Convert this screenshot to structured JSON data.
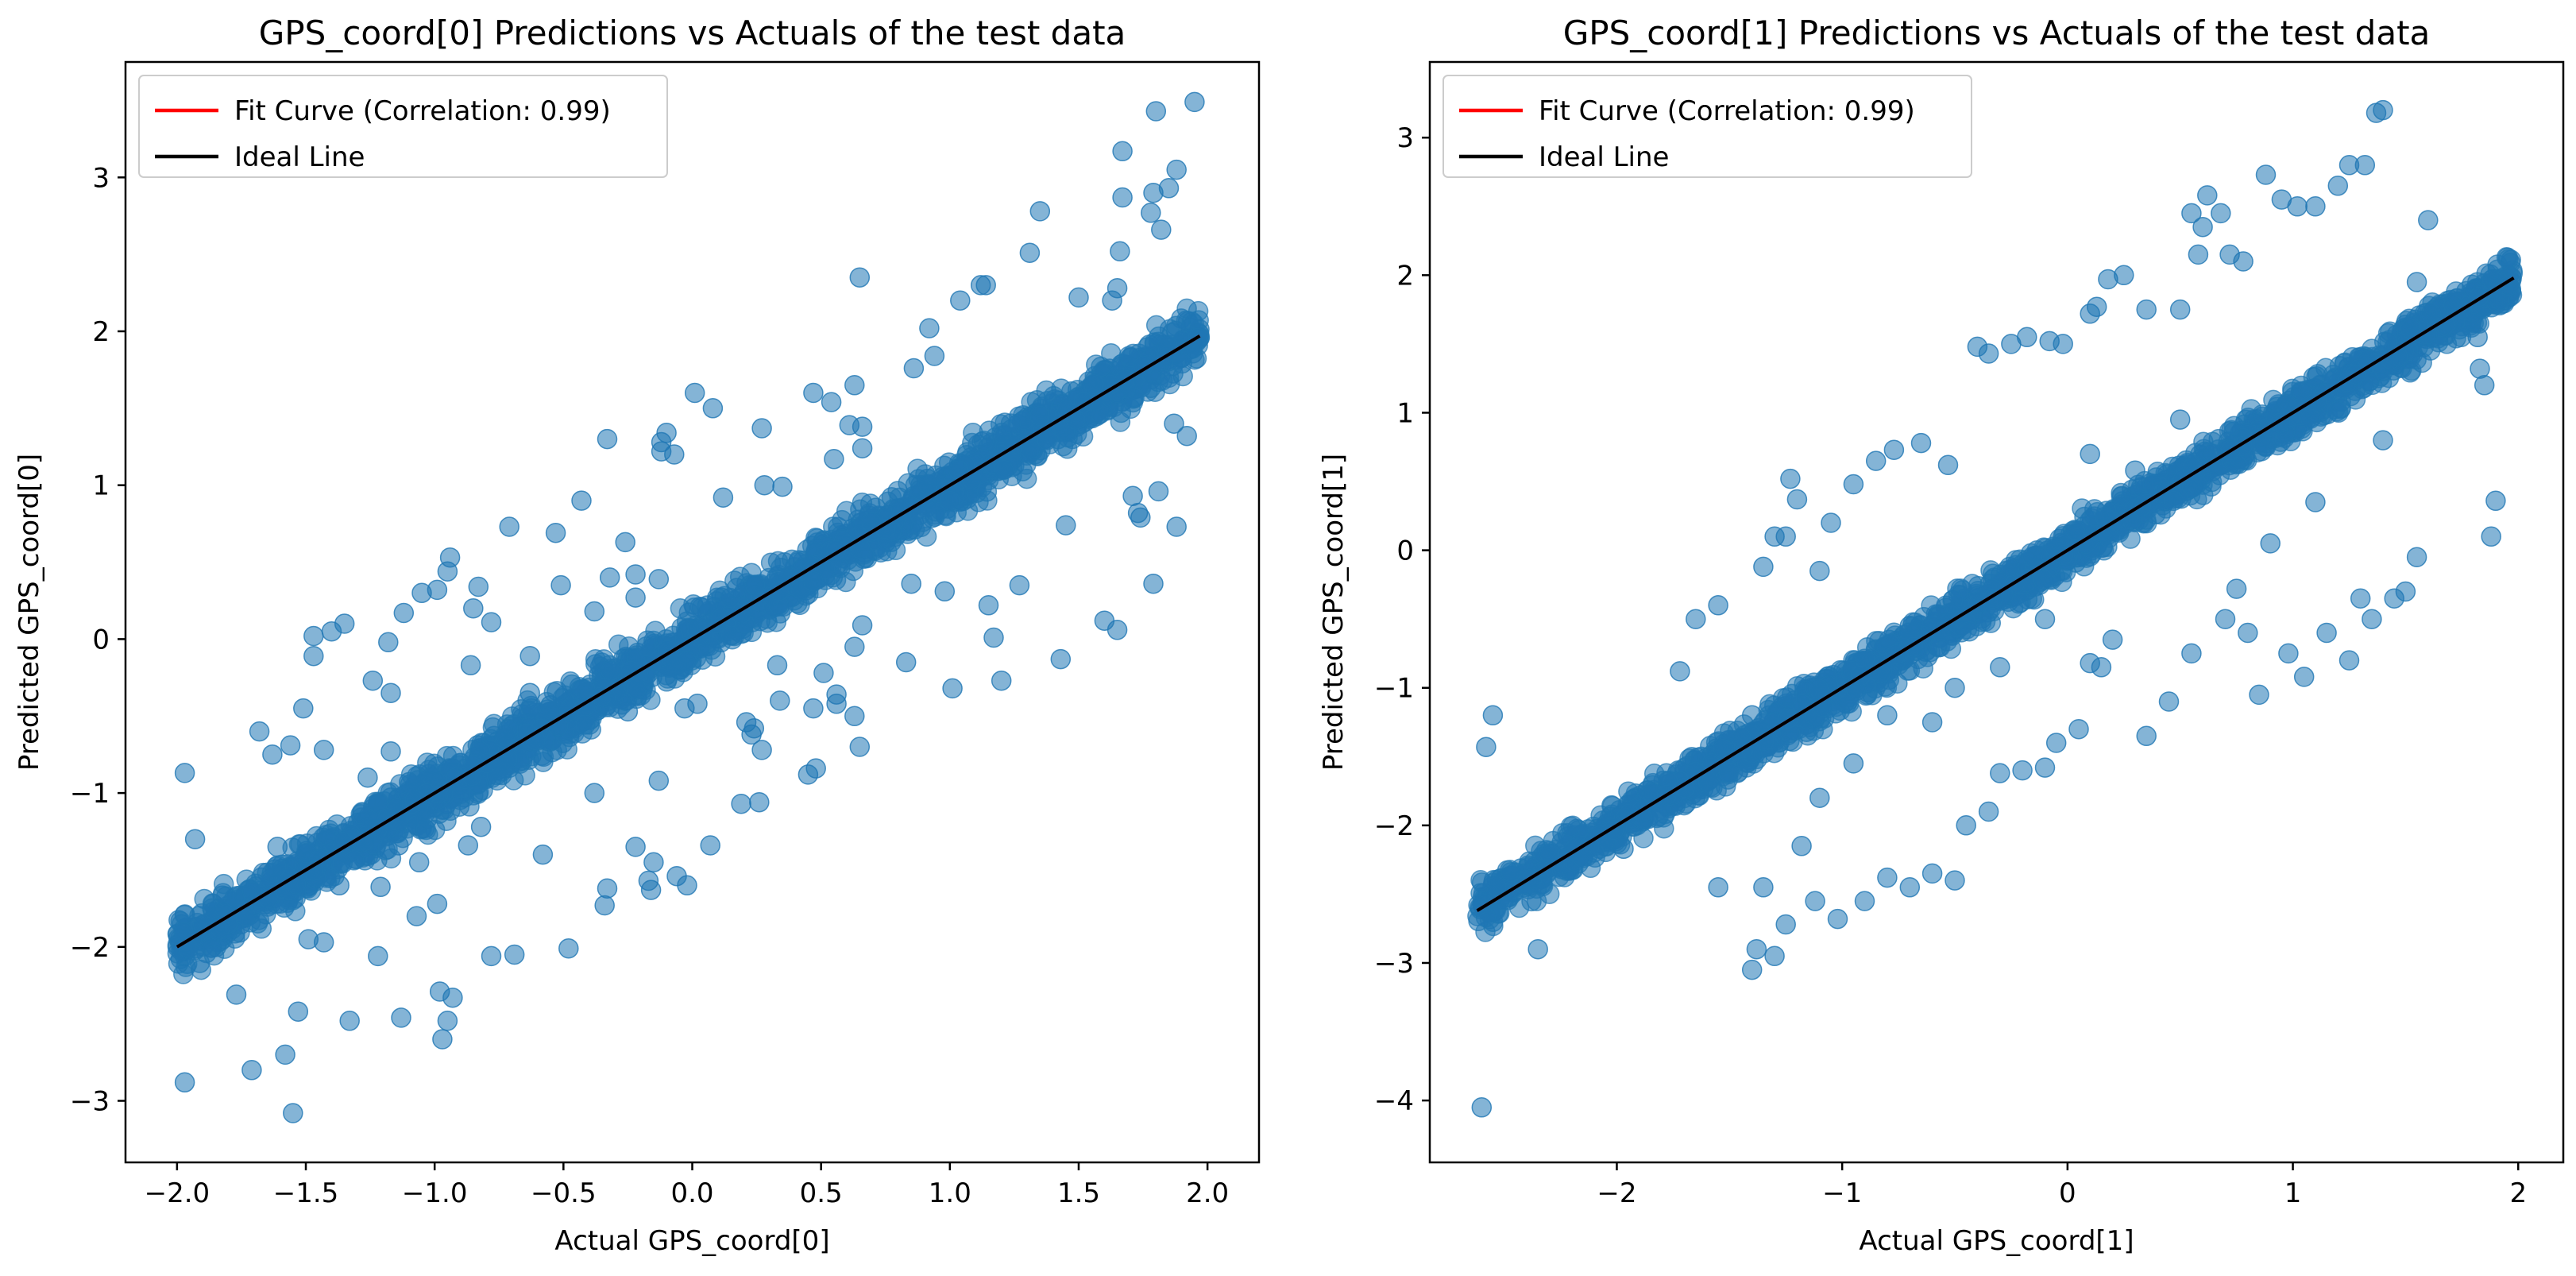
{
  "chart_data": [
    {
      "type": "scatter",
      "title": "GPS_coord[0] Predictions vs Actuals of the test data",
      "xlabel": "Actual GPS_coord[0]",
      "ylabel": "Predicted GPS_coord[0]",
      "xlim": [
        -2.2,
        2.2
      ],
      "ylim": [
        -3.4,
        3.75
      ],
      "xticks": [
        -2.0,
        -1.5,
        -1.0,
        -0.5,
        0.0,
        0.5,
        1.0,
        1.5,
        2.0
      ],
      "xtick_labels": [
        "−2.0",
        "−1.5",
        "−1.0",
        "−0.5",
        "0.0",
        "0.5",
        "1.0",
        "1.5",
        "2.0"
      ],
      "yticks": [
        -3,
        -2,
        -1,
        0,
        1,
        2,
        3
      ],
      "ytick_labels": [
        "−3",
        "−2",
        "−1",
        "0",
        "1",
        "2",
        "3"
      ],
      "legend": [
        {
          "label": "Fit Curve (Correlation: 0.99)",
          "color": "#ff0000"
        },
        {
          "label": "Ideal Line",
          "color": "#000000"
        }
      ],
      "legend_loc": "upper-left",
      "point_color": "#1f77b4",
      "ideal_line": {
        "x": [
          -2.0,
          1.97
        ],
        "y": [
          -2.0,
          1.97
        ]
      },
      "band": {
        "x_start": -2.0,
        "x_end": 1.97,
        "half_width": 0.18
      },
      "points": [
        [
          -1.97,
          -0.87
        ],
        [
          -1.93,
          -1.3
        ],
        [
          -1.97,
          -2.88
        ],
        [
          -1.55,
          -3.08
        ],
        [
          -1.58,
          -2.7
        ],
        [
          -1.53,
          -2.42
        ],
        [
          -1.71,
          -2.8
        ],
        [
          -1.77,
          -2.31
        ],
        [
          -1.33,
          -2.48
        ],
        [
          -1.13,
          -2.46
        ],
        [
          -0.97,
          -2.6
        ],
        [
          -0.95,
          -2.48
        ],
        [
          -0.98,
          -2.29
        ],
        [
          -0.93,
          -2.33
        ],
        [
          -0.78,
          -2.06
        ],
        [
          -0.69,
          -2.05
        ],
        [
          -0.48,
          -2.01
        ],
        [
          -1.22,
          -2.06
        ],
        [
          -1.49,
          -1.95
        ],
        [
          -1.43,
          -1.97
        ],
        [
          -1.37,
          -1.6
        ],
        [
          -1.61,
          -1.35
        ],
        [
          -1.51,
          -0.45
        ],
        [
          -1.56,
          -0.69
        ],
        [
          -1.43,
          -0.72
        ],
        [
          -1.68,
          -0.6
        ],
        [
          -1.63,
          -0.75
        ],
        [
          -1.47,
          0.02
        ],
        [
          -1.4,
          0.05
        ],
        [
          -1.35,
          0.1
        ],
        [
          -1.47,
          -0.11
        ],
        [
          -1.24,
          -0.27
        ],
        [
          -1.17,
          -0.35
        ],
        [
          -1.18,
          -0.02
        ],
        [
          -1.12,
          0.17
        ],
        [
          -1.05,
          0.3
        ],
        [
          -0.99,
          0.32
        ],
        [
          -0.95,
          0.44
        ],
        [
          -0.94,
          0.53
        ],
        [
          -0.83,
          0.34
        ],
        [
          -0.85,
          0.2
        ],
        [
          -0.78,
          0.11
        ],
        [
          -0.71,
          0.73
        ],
        [
          -0.53,
          0.69
        ],
        [
          -0.51,
          0.35
        ],
        [
          -0.32,
          0.4
        ],
        [
          -0.22,
          0.27
        ],
        [
          -0.13,
          0.39
        ],
        [
          -0.22,
          0.42
        ],
        [
          -0.26,
          0.63
        ],
        [
          -0.38,
          0.18
        ],
        [
          -0.33,
          1.3
        ],
        [
          -0.1,
          1.34
        ],
        [
          -0.12,
          1.28
        ],
        [
          -0.12,
          1.22
        ],
        [
          -0.07,
          1.2
        ],
        [
          0.01,
          1.6
        ],
        [
          0.08,
          1.5
        ],
        [
          0.27,
          1.37
        ],
        [
          0.28,
          1.0
        ],
        [
          0.12,
          0.92
        ],
        [
          0.35,
          0.99
        ],
        [
          0.47,
          1.6
        ],
        [
          0.63,
          1.65
        ],
        [
          0.54,
          1.54
        ],
        [
          0.61,
          1.39
        ],
        [
          0.66,
          1.38
        ],
        [
          0.66,
          1.24
        ],
        [
          0.55,
          1.17
        ],
        [
          0.86,
          1.76
        ],
        [
          0.94,
          1.84
        ],
        [
          0.92,
          2.02
        ],
        [
          1.04,
          2.2
        ],
        [
          1.12,
          2.3
        ],
        [
          1.14,
          2.3
        ],
        [
          1.35,
          2.78
        ],
        [
          1.31,
          2.51
        ],
        [
          1.5,
          2.22
        ],
        [
          1.63,
          2.2
        ],
        [
          1.65,
          2.28
        ],
        [
          1.66,
          2.52
        ],
        [
          1.67,
          2.87
        ],
        [
          1.67,
          3.17
        ],
        [
          1.78,
          2.77
        ],
        [
          1.79,
          2.9
        ],
        [
          1.82,
          2.66
        ],
        [
          1.85,
          2.93
        ],
        [
          1.88,
          3.05
        ],
        [
          1.8,
          3.43
        ],
        [
          1.95,
          3.49
        ],
        [
          1.92,
          1.32
        ],
        [
          1.87,
          1.4
        ],
        [
          1.81,
          0.96
        ],
        [
          1.71,
          0.93
        ],
        [
          1.73,
          0.82
        ],
        [
          1.74,
          0.79
        ],
        [
          1.79,
          0.36
        ],
        [
          1.88,
          0.73
        ],
        [
          1.65,
          0.06
        ],
        [
          1.6,
          0.12
        ],
        [
          1.27,
          0.35
        ],
        [
          1.15,
          0.22
        ],
        [
          1.17,
          0.01
        ],
        [
          1.45,
          0.74
        ],
        [
          1.43,
          -0.13
        ],
        [
          1.2,
          -0.27
        ],
        [
          1.01,
          -0.32
        ],
        [
          0.83,
          -0.15
        ],
        [
          0.98,
          0.31
        ],
        [
          0.85,
          0.36
        ],
        [
          0.66,
          0.09
        ],
        [
          0.63,
          -0.05
        ],
        [
          0.51,
          -0.22
        ],
        [
          0.56,
          -0.36
        ],
        [
          0.63,
          -0.5
        ],
        [
          0.65,
          -0.7
        ],
        [
          0.48,
          -0.84
        ],
        [
          0.45,
          -0.88
        ],
        [
          0.56,
          -0.42
        ],
        [
          0.47,
          -0.45
        ],
        [
          0.24,
          -0.58
        ],
        [
          0.23,
          -0.62
        ],
        [
          0.26,
          -1.06
        ],
        [
          0.19,
          -1.07
        ],
        [
          0.07,
          -1.34
        ],
        [
          -0.06,
          -1.54
        ],
        [
          -0.02,
          -1.6
        ],
        [
          -0.17,
          -1.57
        ],
        [
          -0.16,
          -1.63
        ],
        [
          -0.15,
          -1.45
        ],
        [
          -0.22,
          -1.35
        ],
        [
          -0.33,
          -1.62
        ],
        [
          -0.34,
          -1.73
        ],
        [
          -0.38,
          -1.0
        ],
        [
          -0.13,
          -0.92
        ],
        [
          -0.03,
          -0.45
        ],
        [
          0.02,
          -0.42
        ],
        [
          0.21,
          -0.54
        ],
        [
          0.34,
          -0.4
        ],
        [
          0.27,
          -0.72
        ],
        [
          0.33,
          -0.17
        ],
        [
          -0.06,
          -0.17
        ],
        [
          -0.21,
          -0.22
        ],
        [
          -0.25,
          -0.47
        ],
        [
          -0.55,
          -0.43
        ],
        [
          -0.63,
          -0.35
        ],
        [
          -0.73,
          -0.84
        ],
        [
          -0.58,
          -1.4
        ],
        [
          -0.82,
          -1.22
        ],
        [
          -0.87,
          -1.34
        ],
        [
          -1.03,
          -1.17
        ],
        [
          -1.1,
          -0.93
        ],
        [
          -1.17,
          -0.73
        ],
        [
          -1.26,
          -0.9
        ],
        [
          -1.24,
          -1.19
        ],
        [
          -1.06,
          -1.45
        ],
        [
          -0.99,
          -1.72
        ],
        [
          -1.07,
          -1.8
        ],
        [
          -1.21,
          -1.61
        ],
        [
          -1.14,
          -1.34
        ],
        [
          -0.63,
          -0.11
        ],
        [
          -0.86,
          -0.17
        ],
        [
          0.65,
          2.35
        ],
        [
          0.03,
          0.21
        ],
        [
          -0.43,
          0.9
        ]
      ]
    },
    {
      "type": "scatter",
      "title": "GPS_coord[1] Predictions vs Actuals of the test data",
      "xlabel": "Actual GPS_coord[1]",
      "ylabel": "Predicted GPS_coord[1]",
      "xlim": [
        -2.83,
        2.2
      ],
      "ylim": [
        -4.45,
        3.55
      ],
      "xticks": [
        -2,
        -1,
        0,
        1,
        2
      ],
      "xtick_labels": [
        "−2",
        "−1",
        "0",
        "1",
        "2"
      ],
      "yticks": [
        -4,
        -3,
        -2,
        -1,
        0,
        1,
        2,
        3
      ],
      "ytick_labels": [
        "−4",
        "−3",
        "−2",
        "−1",
        "0",
        "1",
        "2",
        "3"
      ],
      "legend": [
        {
          "label": "Fit Curve (Correlation: 0.99)",
          "color": "#ff0000"
        },
        {
          "label": "Ideal Line",
          "color": "#000000"
        }
      ],
      "legend_loc": "upper-left",
      "point_color": "#1f77b4",
      "ideal_line": {
        "x": [
          -2.62,
          1.98
        ],
        "y": [
          -2.62,
          1.98
        ]
      },
      "band": {
        "x_start": -2.62,
        "x_end": 1.98,
        "half_width": 0.16
      },
      "points": [
        [
          -2.6,
          -4.05
        ],
        [
          -2.58,
          -1.43
        ],
        [
          -2.55,
          -1.2
        ],
        [
          -2.35,
          -2.9
        ],
        [
          -1.97,
          -2.17
        ],
        [
          -1.72,
          -0.88
        ],
        [
          -1.65,
          -0.5
        ],
        [
          -1.55,
          -0.4
        ],
        [
          -1.35,
          -0.12
        ],
        [
          -1.3,
          0.1
        ],
        [
          -1.25,
          0.1
        ],
        [
          -1.23,
          0.52
        ],
        [
          -1.2,
          0.37
        ],
        [
          -1.1,
          -0.15
        ],
        [
          -1.05,
          0.2
        ],
        [
          -0.95,
          0.48
        ],
        [
          -0.85,
          0.65
        ],
        [
          -0.77,
          0.73
        ],
        [
          -0.65,
          0.78
        ],
        [
          -0.53,
          0.62
        ],
        [
          -0.4,
          1.48
        ],
        [
          -0.35,
          1.43
        ],
        [
          -0.25,
          1.5
        ],
        [
          -0.18,
          1.55
        ],
        [
          -0.08,
          1.52
        ],
        [
          -0.02,
          1.5
        ],
        [
          0.1,
          1.72
        ],
        [
          0.13,
          1.77
        ],
        [
          0.18,
          1.97
        ],
        [
          0.25,
          2.0
        ],
        [
          0.35,
          1.75
        ],
        [
          0.5,
          1.75
        ],
        [
          0.55,
          2.45
        ],
        [
          0.58,
          2.15
        ],
        [
          0.6,
          2.35
        ],
        [
          0.62,
          2.58
        ],
        [
          0.68,
          2.45
        ],
        [
          0.72,
          2.15
        ],
        [
          0.78,
          2.1
        ],
        [
          0.88,
          2.73
        ],
        [
          0.95,
          2.55
        ],
        [
          1.02,
          2.5
        ],
        [
          1.1,
          2.5
        ],
        [
          1.2,
          2.65
        ],
        [
          1.25,
          2.8
        ],
        [
          1.32,
          2.8
        ],
        [
          1.37,
          3.18
        ],
        [
          1.4,
          3.2
        ],
        [
          1.55,
          1.95
        ],
        [
          1.6,
          2.4
        ],
        [
          1.82,
          1.55
        ],
        [
          1.83,
          1.32
        ],
        [
          1.9,
          0.36
        ],
        [
          1.88,
          0.1
        ],
        [
          1.85,
          1.2
        ],
        [
          1.55,
          -0.05
        ],
        [
          1.5,
          -0.3
        ],
        [
          1.45,
          -0.35
        ],
        [
          1.35,
          -0.5
        ],
        [
          1.3,
          -0.35
        ],
        [
          1.25,
          -0.8
        ],
        [
          1.15,
          -0.6
        ],
        [
          1.05,
          -0.92
        ],
        [
          0.98,
          -0.75
        ],
        [
          0.85,
          -1.05
        ],
        [
          0.8,
          -0.6
        ],
        [
          0.75,
          -0.28
        ],
        [
          0.7,
          -0.5
        ],
        [
          0.55,
          -0.75
        ],
        [
          0.45,
          -1.1
        ],
        [
          0.35,
          -1.35
        ],
        [
          0.2,
          -0.65
        ],
        [
          0.15,
          -0.85
        ],
        [
          0.1,
          -0.82
        ],
        [
          0.05,
          -1.3
        ],
        [
          -0.05,
          -1.4
        ],
        [
          -0.1,
          -1.58
        ],
        [
          -0.2,
          -1.6
        ],
        [
          -0.3,
          -1.62
        ],
        [
          -0.35,
          -1.9
        ],
        [
          -0.45,
          -2.0
        ],
        [
          -0.5,
          -2.4
        ],
        [
          -0.6,
          -2.35
        ],
        [
          -0.7,
          -2.45
        ],
        [
          -0.8,
          -2.38
        ],
        [
          -0.9,
          -2.55
        ],
        [
          -1.02,
          -2.68
        ],
        [
          -1.12,
          -2.55
        ],
        [
          -1.18,
          -2.15
        ],
        [
          -1.25,
          -2.72
        ],
        [
          -1.3,
          -2.95
        ],
        [
          -1.35,
          -2.45
        ],
        [
          -1.38,
          -2.9
        ],
        [
          -1.4,
          -3.05
        ],
        [
          -1.55,
          -2.45
        ],
        [
          -1.1,
          -1.8
        ],
        [
          -0.95,
          -1.55
        ],
        [
          -0.8,
          -1.2
        ],
        [
          -0.6,
          -1.25
        ],
        [
          -0.5,
          -1.0
        ],
        [
          -0.3,
          -0.85
        ],
        [
          -0.1,
          -0.5
        ],
        [
          0.1,
          0.7
        ],
        [
          0.3,
          0.58
        ],
        [
          0.5,
          0.95
        ],
        [
          -0.7,
          -0.55
        ],
        [
          -1.4,
          -1.2
        ],
        [
          0.9,
          0.05
        ],
        [
          1.1,
          0.35
        ],
        [
          1.4,
          0.8
        ]
      ]
    }
  ]
}
